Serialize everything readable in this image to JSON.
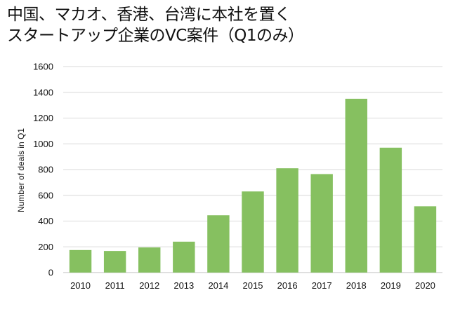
{
  "title": {
    "line1": "中国、マカオ、香港、台湾に本社を置く",
    "line2": "スタートアップ企業のVC案件（Q1のみ）"
  },
  "colors": {
    "bar": "#86c060",
    "grid": "#d9d9d9",
    "axis": "#bfbfbf"
  },
  "chart_data": {
    "type": "bar",
    "title": "中国、マカオ、香港、台湾に本社を置く スタートアップ企業のVC案件（Q1のみ）",
    "xlabel": "",
    "ylabel": "Number of deals in Q1",
    "ylim": [
      0,
      1600
    ],
    "yticks": [
      0,
      200,
      400,
      600,
      800,
      1000,
      1200,
      1400,
      1600
    ],
    "grid": true,
    "legend": "none",
    "categories": [
      "2010",
      "2011",
      "2012",
      "2013",
      "2014",
      "2015",
      "2016",
      "2017",
      "2018",
      "2019",
      "2020"
    ],
    "values": [
      175,
      168,
      195,
      240,
      445,
      630,
      810,
      765,
      1350,
      970,
      515
    ]
  }
}
